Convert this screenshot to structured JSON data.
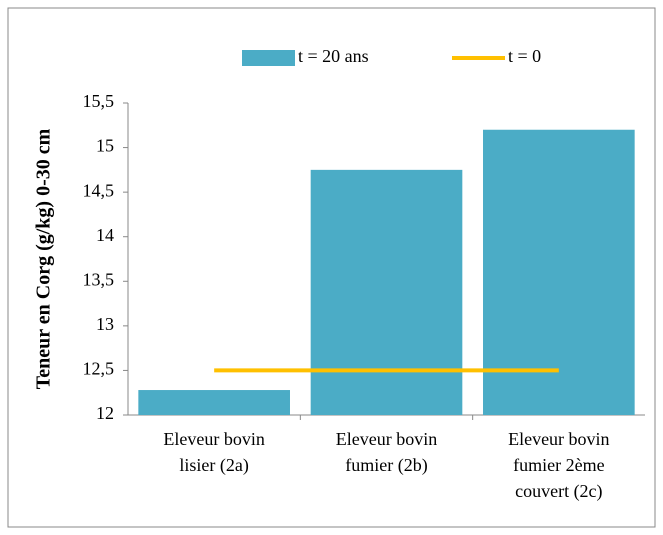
{
  "chart_data": {
    "type": "bar",
    "y_label": "Teneur en Corg (g/kg) 0-30 cm",
    "categories": [
      "Eleveur bovin\nlisier (2a)",
      "Eleveur bovin\nfumier (2b)",
      "Eleveur bovin\nfumier 2ème\ncouvert (2c)"
    ],
    "series": [
      {
        "name": "t = 20 ans",
        "type": "bar",
        "color": "#4bacc6",
        "values": [
          12.28,
          14.75,
          15.2
        ]
      },
      {
        "name": "t = 0",
        "type": "line",
        "color": "#ffc000",
        "values": [
          12.5,
          12.5,
          12.5
        ]
      }
    ],
    "ylim": [
      12,
      15.5
    ],
    "yticks": [
      12,
      {
        "value": 12.5,
        "label": "12,5"
      },
      13,
      {
        "value": 13.5,
        "label": "13,5"
      },
      14,
      {
        "value": 14.5,
        "label": "14,5"
      },
      15,
      {
        "value": 15.5,
        "label": "15,5"
      }
    ],
    "grid": false,
    "legend": "top"
  }
}
